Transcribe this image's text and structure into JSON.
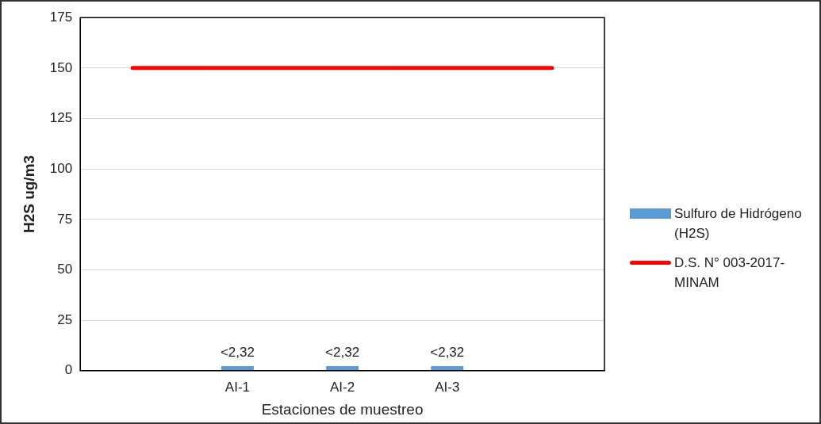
{
  "chart_data": {
    "type": "bar",
    "xlabel": "Estaciones de muestreo",
    "ylabel": "H2S ug/m3",
    "categories": [
      null,
      "AI-1",
      "AI-2",
      "AI-3",
      null
    ],
    "series": [
      {
        "name": "Sulfuro de Hidrógeno (H2S)",
        "color": "#5b9bd5",
        "values": [
          null,
          2.32,
          2.32,
          2.32,
          null
        ],
        "value_labels": [
          null,
          "<2,32",
          "<2,32",
          "<2,32",
          null
        ]
      },
      {
        "name": "D.S. N° 003-2017-MINAM",
        "type": "line",
        "color": "#ff0000",
        "values": [
          150,
          150,
          150,
          150,
          150
        ]
      }
    ],
    "ylim": [
      0,
      175
    ],
    "yticks": [
      0,
      25,
      50,
      75,
      100,
      125,
      150,
      175
    ],
    "grid": "y",
    "legend": "right",
    "marker": "none"
  }
}
